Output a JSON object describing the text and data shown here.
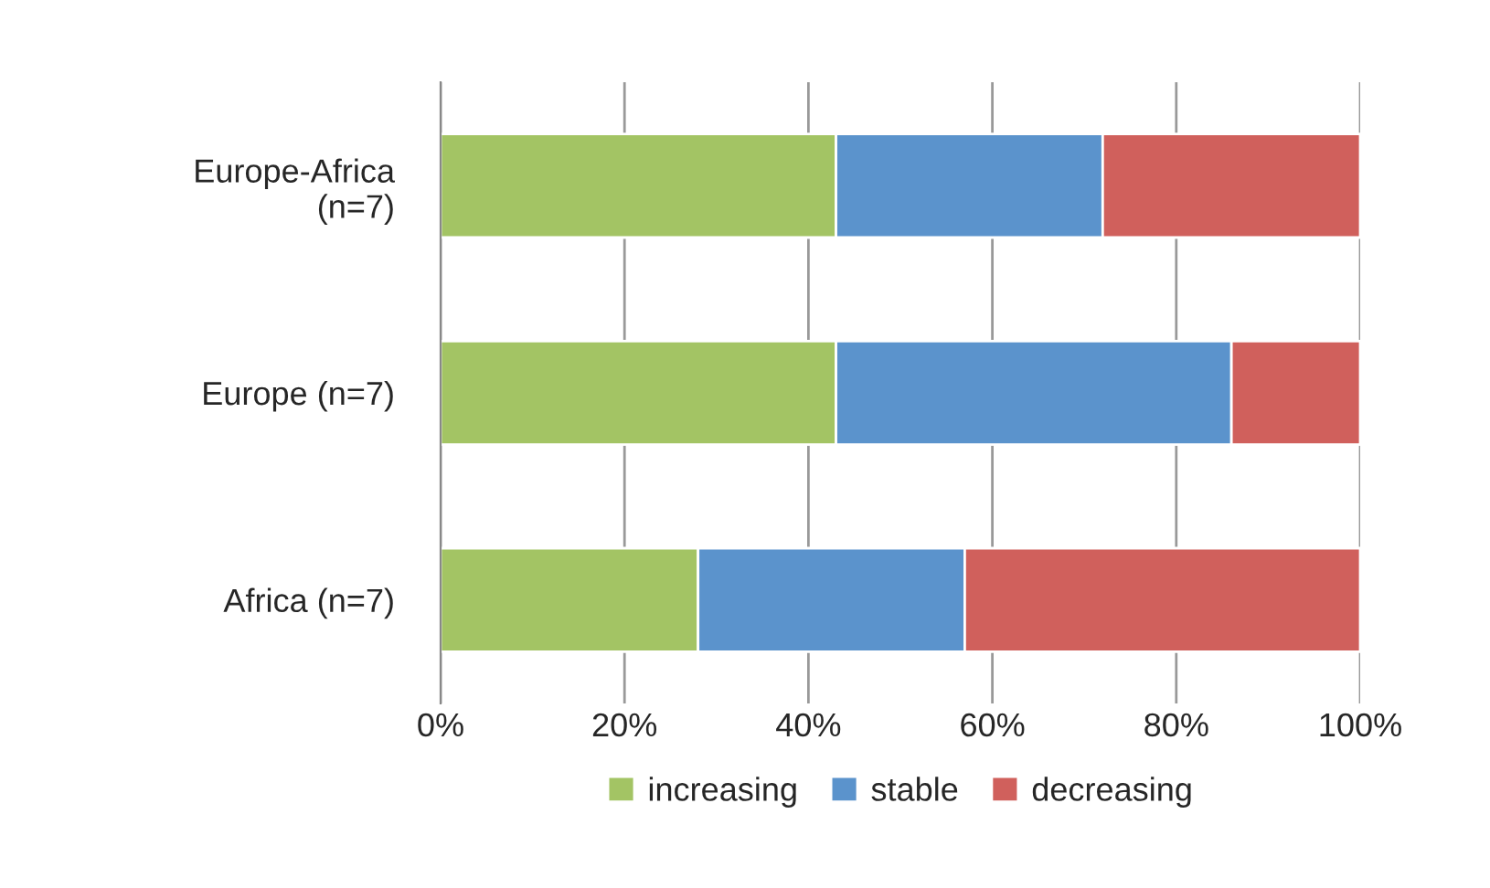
{
  "chart_data": {
    "type": "bar",
    "orientation": "horizontal",
    "stacked": true,
    "categories": [
      "Europe-Africa\n(n=7)",
      "Europe (n=7)",
      "Africa (n=7)"
    ],
    "series": [
      {
        "name": "increasing",
        "color": "#a3c464",
        "values": [
          43,
          43,
          28
        ]
      },
      {
        "name": "stable",
        "color": "#5b93cc",
        "values": [
          29,
          43,
          29
        ]
      },
      {
        "name": "decreasing",
        "color": "#d0605c",
        "values": [
          28,
          14,
          43
        ]
      }
    ],
    "xlim": [
      0,
      100
    ],
    "xticks": [
      {
        "value": 0,
        "label": "0%"
      },
      {
        "value": 20,
        "label": "20%"
      },
      {
        "value": 40,
        "label": "40%"
      },
      {
        "value": 60,
        "label": "60%"
      },
      {
        "value": 80,
        "label": "80%"
      },
      {
        "value": 100,
        "label": "100%"
      }
    ],
    "grid": "x",
    "legend": "bottom"
  }
}
